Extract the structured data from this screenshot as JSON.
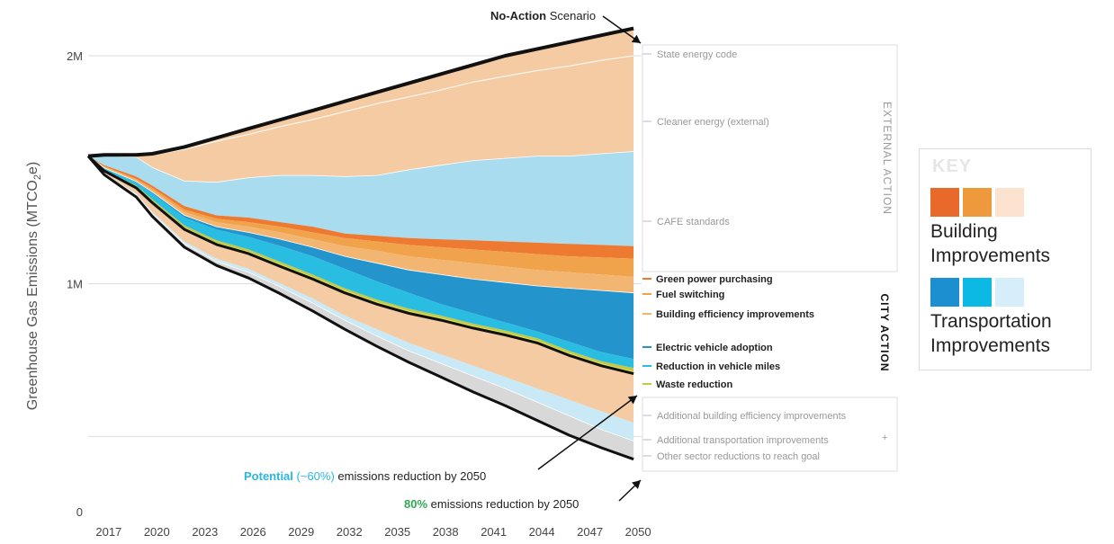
{
  "chart_data": {
    "type": "area",
    "title": "No-Action Scenario",
    "title_bold": "No-Action",
    "title_rest": "Scenario",
    "ylabel": "Greenhouse Gas Emissions (MTCO₂e)",
    "ylabel_main": "Greenhouse Gas Emissions (MTCO",
    "ylabel_sub": "2",
    "ylabel_end": "e)",
    "xlabel": "",
    "ylim": [
      0,
      2150000
    ],
    "y_ticks": [
      {
        "value": 0,
        "label": "0"
      },
      {
        "value": 1000000,
        "label": "1M"
      },
      {
        "value": 2000000,
        "label": "2M"
      }
    ],
    "x_ticks": [
      2017,
      2020,
      2023,
      2026,
      2029,
      2032,
      2035,
      2038,
      2041,
      2044,
      2047,
      2050
    ],
    "xlim": [
      2016,
      2050.5
    ],
    "x": [
      2016,
      2017,
      2019,
      2020,
      2022,
      2024,
      2026,
      2028,
      2030,
      2032,
      2034,
      2036,
      2038,
      2040,
      2042,
      2044,
      2046,
      2048,
      2050
    ],
    "boundaries": [
      {
        "name": "No-Action total",
        "values": [
          1560000,
          1565000,
          1565000,
          1570000,
          1600000,
          1640000,
          1680000,
          1720000,
          1760000,
          1800000,
          1840000,
          1880000,
          1920000,
          1960000,
          2000000,
          2030000,
          2060000,
          2090000,
          2120000
        ]
      },
      {
        "name": "after State energy code",
        "values": [
          1560000,
          1560000,
          1560000,
          1565000,
          1590000,
          1625000,
          1655000,
          1690000,
          1720000,
          1755000,
          1790000,
          1820000,
          1850000,
          1885000,
          1910000,
          1935000,
          1955000,
          1980000,
          2000000
        ]
      },
      {
        "name": "after Cleaner energy (external)",
        "values": [
          1560000,
          1560000,
          1555000,
          1510000,
          1450000,
          1445000,
          1465000,
          1475000,
          1475000,
          1470000,
          1475000,
          1500000,
          1520000,
          1540000,
          1550000,
          1560000,
          1560000,
          1570000,
          1580000
        ]
      },
      {
        "name": "after CAFE standards",
        "values": [
          1560000,
          1520000,
          1470000,
          1430000,
          1340000,
          1300000,
          1290000,
          1270000,
          1250000,
          1220000,
          1210000,
          1200000,
          1195000,
          1190000,
          1185000,
          1180000,
          1175000,
          1170000,
          1165000
        ]
      },
      {
        "name": "after Green power purchasing",
        "values": [
          1560000,
          1515000,
          1460000,
          1420000,
          1325000,
          1285000,
          1270000,
          1250000,
          1225000,
          1200000,
          1185000,
          1170000,
          1160000,
          1150000,
          1140000,
          1130000,
          1120000,
          1115000,
          1110000
        ]
      },
      {
        "name": "after Fuel switching",
        "values": [
          1560000,
          1512000,
          1455000,
          1412000,
          1315000,
          1270000,
          1250000,
          1225000,
          1195000,
          1165000,
          1145000,
          1120000,
          1105000,
          1090000,
          1075000,
          1060000,
          1050000,
          1040000,
          1030000
        ]
      },
      {
        "name": "after Building efficiency improvements",
        "values": [
          1560000,
          1508000,
          1448000,
          1402000,
          1300000,
          1250000,
          1225000,
          1195000,
          1160000,
          1120000,
          1090000,
          1060000,
          1040000,
          1020000,
          1005000,
          990000,
          980000,
          970000,
          960000
        ]
      },
      {
        "name": "after Electric vehicle adoption",
        "values": [
          1560000,
          1506000,
          1444000,
          1395000,
          1290000,
          1237000,
          1205000,
          1165000,
          1120000,
          1065000,
          1010000,
          960000,
          910000,
          870000,
          830000,
          790000,
          745000,
          700000,
          670000
        ]
      },
      {
        "name": "after Reduction in vehicle miles",
        "values": [
          1560000,
          1500000,
          1430000,
          1370000,
          1255000,
          1190000,
          1150000,
          1095000,
          1040000,
          980000,
          930000,
          890000,
          860000,
          825000,
          795000,
          760000,
          705000,
          660000,
          630000
        ]
      },
      {
        "name": "after Waste reduction",
        "values": [
          1560000,
          1498000,
          1425000,
          1362000,
          1245000,
          1180000,
          1140000,
          1085000,
          1030000,
          970000,
          920000,
          880000,
          850000,
          815000,
          785000,
          750000,
          695000,
          650000,
          615000
        ]
      },
      {
        "name": "Potential (~60%) pathway",
        "values": [
          1560000,
          1495000,
          1420000,
          1355000,
          1238000,
          1172000,
          1132000,
          1075000,
          1020000,
          960000,
          910000,
          870000,
          840000,
          805000,
          775000,
          740000,
          685000,
          640000,
          605000
        ]
      },
      {
        "name": "after Additional building efficiency improvements",
        "values": [
          1560000,
          1485000,
          1395000,
          1315000,
          1185000,
          1110000,
          1065000,
          1000000,
          935000,
          860000,
          800000,
          740000,
          690000,
          640000,
          590000,
          540000,
          490000,
          440000,
          390000
        ]
      },
      {
        "name": "after Additional transportation improvements",
        "values": [
          1560000,
          1482000,
          1390000,
          1308000,
          1175000,
          1098000,
          1050000,
          985000,
          915000,
          840000,
          770000,
          705000,
          650000,
          595000,
          540000,
          480000,
          420000,
          360000,
          310000
        ]
      },
      {
        "name": "80% goal pathway",
        "values": [
          1560000,
          1478000,
          1380000,
          1295000,
          1160000,
          1080000,
          1025000,
          955000,
          880000,
          800000,
          725000,
          655000,
          590000,
          525000,
          465000,
          400000,
          335000,
          280000,
          230000
        ]
      }
    ],
    "series": [
      {
        "name": "State energy code",
        "color": "#f5cba4",
        "group": "external"
      },
      {
        "name": "Cleaner energy (external)",
        "color": "#f5cba4",
        "group": "external"
      },
      {
        "name": "CAFE standards",
        "color": "#a9dcee",
        "group": "external"
      },
      {
        "name": "Green power purchasing",
        "color": "#ee7a32",
        "group": "city"
      },
      {
        "name": "Fuel switching",
        "color": "#f0a34a",
        "group": "city"
      },
      {
        "name": "Building efficiency improvements",
        "color": "#f3b572",
        "group": "city"
      },
      {
        "name": "Electric vehicle adoption",
        "color": "#2494cc",
        "group": "city"
      },
      {
        "name": "Reduction in vehicle miles",
        "color": "#29bde2",
        "group": "city"
      },
      {
        "name": "Waste reduction",
        "color": "#c3c845",
        "group": "city"
      },
      {
        "name": "Additional building efficiency improvements",
        "color": "#f5cba4",
        "group": "additional"
      },
      {
        "name": "Additional transportation improvements",
        "color": "#c8e9f5",
        "group": "additional"
      },
      {
        "name": "Other sector reductions to reach goal",
        "color": "#d8d8d8",
        "group": "additional"
      }
    ],
    "group_labels": {
      "external": "EXTERNAL ACTION",
      "city": "CITY ACTION",
      "additional": "+"
    },
    "annotations": [
      {
        "highlight": "Potential",
        "highlight2": "(~60%)",
        "text": "emissions reduction by 2050",
        "color": "#29b6e0"
      },
      {
        "highlight": "80%",
        "text": "emissions reduction by 2050",
        "color": "#33a853"
      }
    ]
  },
  "key": {
    "title": "KEY",
    "building_label": "Building Improvements",
    "building_colors": [
      "#e8692a",
      "#ee9a3c",
      "#fbe3cf"
    ],
    "transport_label": "Transportation Improvements",
    "transport_colors": [
      "#1b8fcf",
      "#0cb8e4",
      "#d6eef9"
    ]
  }
}
